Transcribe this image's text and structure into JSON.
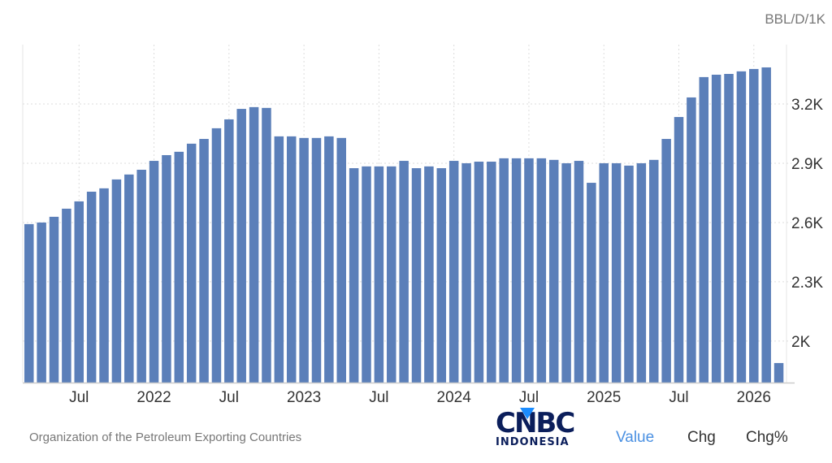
{
  "header": {
    "unit": "BBL/D/1K"
  },
  "footer": {
    "source": "Organization of the Petroleum Exporting Countries",
    "tabs": [
      {
        "label": "Value",
        "active": true
      },
      {
        "label": "Chg",
        "active": false
      },
      {
        "label": "Chg%",
        "active": false
      }
    ]
  },
  "logo": {
    "text": "CNBC",
    "subtext": "INDONESIA"
  },
  "colors": {
    "bar": "#5b7fb9",
    "active_tab": "#4a90e2",
    "grid": "#dddddd"
  },
  "chart_data": {
    "type": "bar",
    "title": "",
    "xlabel": "",
    "ylabel": "",
    "ylim": [
      1790,
      3500
    ],
    "grid": true,
    "y_axis_position": "right",
    "yticks": [
      {
        "value": 2000,
        "label": "2K"
      },
      {
        "value": 2300,
        "label": "2.3K"
      },
      {
        "value": 2600,
        "label": "2.6K"
      },
      {
        "value": 2900,
        "label": "2.9K"
      },
      {
        "value": 3200,
        "label": "3.2K"
      }
    ],
    "xticks": [
      {
        "category": "2021-07",
        "label": "Jul"
      },
      {
        "category": "2022-01",
        "label": "2022"
      },
      {
        "category": "2022-07",
        "label": "Jul"
      },
      {
        "category": "2023-01",
        "label": "2023"
      },
      {
        "category": "2023-07",
        "label": "Jul"
      },
      {
        "category": "2024-01",
        "label": "2024"
      },
      {
        "category": "2024-07",
        "label": "Jul"
      },
      {
        "category": "2025-01",
        "label": "2025"
      },
      {
        "category": "2025-07",
        "label": "Jul"
      },
      {
        "category": "2026-01",
        "label": "2026"
      }
    ],
    "categories": [
      "2021-03",
      "2021-04",
      "2021-05",
      "2021-06",
      "2021-07",
      "2021-08",
      "2021-09",
      "2021-10",
      "2021-11",
      "2021-12",
      "2022-01",
      "2022-02",
      "2022-03",
      "2022-04",
      "2022-05",
      "2022-06",
      "2022-07",
      "2022-08",
      "2022-09",
      "2022-10",
      "2022-11",
      "2022-12",
      "2023-01",
      "2023-02",
      "2023-03",
      "2023-04",
      "2023-05",
      "2023-06",
      "2023-07",
      "2023-08",
      "2023-09",
      "2023-10",
      "2023-11",
      "2023-12",
      "2024-01",
      "2024-02",
      "2024-03",
      "2024-04",
      "2024-05",
      "2024-06",
      "2024-07",
      "2024-08",
      "2024-09",
      "2024-10",
      "2024-11",
      "2024-12",
      "2025-01",
      "2025-02",
      "2025-03",
      "2025-04",
      "2025-05",
      "2025-06",
      "2025-07",
      "2025-08",
      "2025-09",
      "2025-10",
      "2025-11",
      "2025-12",
      "2026-01",
      "2026-02",
      "2026-03"
    ],
    "values": [
      2592,
      2600,
      2629,
      2670,
      2707,
      2756,
      2773,
      2818,
      2843,
      2867,
      2912,
      2941,
      2958,
      2999,
      3023,
      3077,
      3122,
      3175,
      3184,
      3180,
      3036,
      3036,
      3028,
      3028,
      3036,
      3028,
      2875,
      2884,
      2884,
      2884,
      2912,
      2875,
      2884,
      2875,
      2912,
      2900,
      2908,
      2908,
      2925,
      2925,
      2925,
      2925,
      2917,
      2900,
      2912,
      2801,
      2900,
      2900,
      2888,
      2900,
      2917,
      3023,
      3134,
      3233,
      3336,
      3348,
      3352,
      3365,
      3377,
      3385,
      1889
    ]
  }
}
